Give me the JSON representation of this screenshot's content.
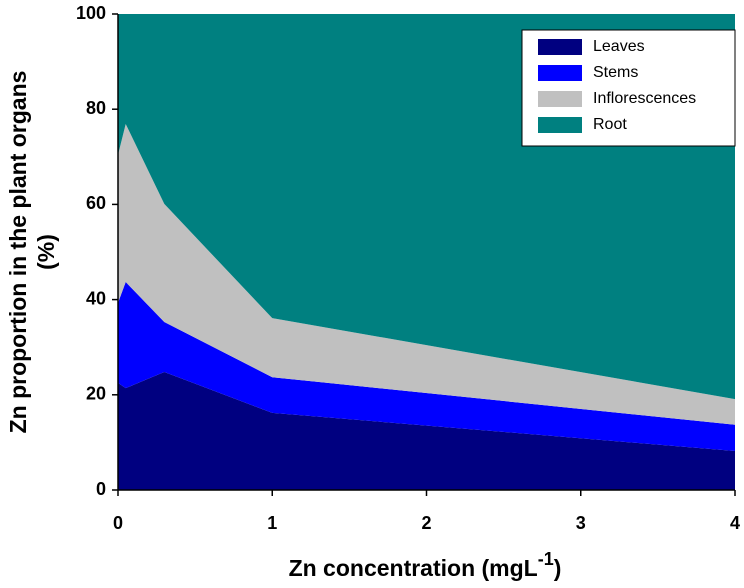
{
  "chart_data": {
    "type": "stacked_area",
    "x": [
      0,
      0.05,
      0.3,
      1,
      4
    ],
    "series": [
      {
        "name": "Leaves",
        "color": "#000080",
        "values": [
          22.5,
          21.4,
          24.8,
          16.2,
          8.2
        ]
      },
      {
        "name": "Stems",
        "color": "#0000ff",
        "values": [
          16.8,
          22.3,
          10.5,
          7.5,
          5.5
        ]
      },
      {
        "name": "Inflorescences",
        "color": "#c0c0c0",
        "values": [
          31.1,
          33.2,
          24.8,
          12.4,
          5.4
        ]
      },
      {
        "name": "Root",
        "color": "#008080",
        "values": [
          29.6,
          23.1,
          39.9,
          63.9,
          80.9
        ]
      }
    ],
    "xlim": [
      0,
      4
    ],
    "xticks": [
      0,
      1,
      2,
      3,
      4
    ],
    "ylim": [
      0,
      100
    ],
    "yticks": [
      0,
      20,
      40,
      60,
      80,
      100
    ],
    "x_label": {
      "text": "Zn concentration (mgL",
      "superscript": "-1",
      "suffix": ")"
    },
    "y_label": [
      "Zn proportion in the plant organs",
      "(%)"
    ],
    "legend": "upper right",
    "grid": false
  }
}
